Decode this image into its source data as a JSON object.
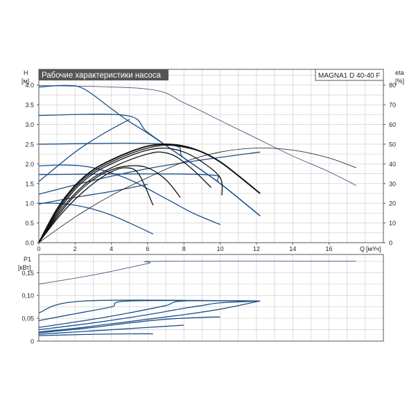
{
  "chart_data": [
    {
      "type": "line",
      "title": "Рабочие характеристики насоса",
      "model": "MAGNA1 D 40-40 F",
      "ylabel": "H",
      "yunit": "[м]",
      "y2label": "eta",
      "y2unit": "[%]",
      "xlabel": "Q",
      "xunit": "[м³/ч]",
      "xlim": [
        0,
        19
      ],
      "ylim": [
        0,
        4.4
      ],
      "y2lim": [
        0,
        88
      ],
      "xticks": [
        "0",
        "2",
        "4",
        "6",
        "8",
        "10",
        "12",
        "14",
        "16"
      ],
      "yticks": [
        "0.0",
        "0.5",
        "1.0",
        "1.5",
        "2.0",
        "2.5",
        "3.0",
        "3.5",
        "4.0"
      ],
      "y2ticks": [
        "0",
        "10",
        "20",
        "30",
        "40",
        "50",
        "60",
        "70",
        "80"
      ],
      "grid": true,
      "colors": {
        "curve": "#1b4f8a",
        "thin": "#3d5a80",
        "eta": "#111111"
      },
      "head_curves": [
        {
          "points": [
            [
              0,
              3.95
            ],
            [
              1.5,
              3.99
            ],
            [
              2.5,
              3.9
            ],
            [
              4,
              3.4
            ],
            [
              5,
              3.07
            ],
            [
              6,
              2.78
            ],
            [
              8,
              2.15
            ],
            [
              10,
              1.5
            ],
            [
              12.2,
              0.68
            ]
          ]
        },
        {
          "points": [
            [
              0,
              3.23
            ],
            [
              4.8,
              3.23
            ],
            [
              6,
              2.8
            ],
            [
              8,
              2.15
            ],
            [
              10,
              1.5
            ],
            [
              12.2,
              0.68
            ]
          ]
        },
        {
          "points": [
            [
              0,
              2.5
            ],
            [
              7,
              2.5
            ],
            [
              8,
              2.15
            ],
            [
              10,
              1.5
            ],
            [
              12.2,
              0.68
            ]
          ]
        },
        {
          "points": [
            [
              0,
              1.73
            ],
            [
              9,
              1.73
            ],
            [
              10,
              1.5
            ],
            [
              12.2,
              0.68
            ]
          ]
        },
        {
          "points": [
            [
              0,
              1.55
            ],
            [
              2,
              2.3
            ],
            [
              3.5,
              2.75
            ],
            [
              5,
              3.13
            ]
          ]
        },
        {
          "points": [
            [
              0,
              1.95
            ],
            [
              1.5,
              1.97
            ],
            [
              3,
              1.9
            ],
            [
              5,
              1.6
            ],
            [
              7,
              1.12
            ],
            [
              8.5,
              0.75
            ],
            [
              10,
              0.46
            ]
          ]
        },
        {
          "points": [
            [
              0,
              1.0
            ],
            [
              1,
              1.0
            ],
            [
              2,
              0.95
            ],
            [
              3,
              0.85
            ],
            [
              4,
              0.7
            ],
            [
              5,
              0.5
            ],
            [
              6.3,
              0.22
            ]
          ]
        },
        {
          "points": [
            [
              0,
              1.23
            ],
            [
              3,
              1.58
            ],
            [
              6,
              1.88
            ],
            [
              9,
              2.1
            ],
            [
              12.2,
              2.3
            ]
          ]
        },
        {
          "points": [
            [
              0,
              0.98
            ],
            [
              2,
              1.15
            ],
            [
              4,
              1.3
            ],
            [
              6,
              1.48
            ]
          ]
        }
      ],
      "max_curve": {
        "points": [
          [
            0,
            3.99
          ],
          [
            6,
            3.9
          ],
          [
            8,
            3.55
          ],
          [
            10,
            3.1
          ],
          [
            12,
            2.65
          ],
          [
            14,
            2.2
          ],
          [
            16,
            1.8
          ],
          [
            17.5,
            1.45
          ]
        ]
      },
      "eta_curves": [
        {
          "points": [
            [
              0,
              0
            ],
            [
              1,
              17
            ],
            [
              2,
              29
            ],
            [
              3,
              37
            ],
            [
              4,
              42
            ],
            [
              5,
              46
            ],
            [
              6,
              49
            ],
            [
              7,
              50
            ],
            [
              8,
              49
            ],
            [
              9,
              46
            ],
            [
              10,
              41
            ],
            [
              11,
              34
            ],
            [
              12.2,
              25
            ]
          ]
        },
        {
          "points": [
            [
              0,
              0
            ],
            [
              1,
              16
            ],
            [
              2,
              28
            ],
            [
              3,
              36
            ],
            [
              4,
              41
            ],
            [
              5,
              45
            ],
            [
              6,
              48
            ],
            [
              7,
              49.5
            ],
            [
              8,
              48.5
            ],
            [
              9,
              46
            ],
            [
              10,
              41
            ]
          ]
        },
        {
          "points": [
            [
              0,
              0
            ],
            [
              1,
              15
            ],
            [
              2,
              27
            ],
            [
              3,
              35
            ],
            [
              4,
              40
            ],
            [
              5,
              44
            ],
            [
              6,
              47
            ],
            [
              7,
              48
            ],
            [
              8,
              46
            ],
            [
              9,
              41
            ],
            [
              10,
              33
            ],
            [
              10.1,
              24
            ]
          ]
        },
        {
          "points": [
            [
              0,
              0
            ],
            [
              1,
              14
            ],
            [
              2,
              25
            ],
            [
              3,
              33
            ],
            [
              4,
              38
            ],
            [
              5,
              42
            ],
            [
              6,
              45
            ],
            [
              6.7,
              46
            ],
            [
              7.5,
              44
            ],
            [
              8.5,
              37
            ],
            [
              9.5,
              28
            ]
          ]
        },
        {
          "points": [
            [
              0,
              0
            ],
            [
              1,
              13
            ],
            [
              2,
              24
            ],
            [
              3,
              32
            ],
            [
              4,
              37
            ],
            [
              5,
              39
            ],
            [
              6,
              38
            ],
            [
              7,
              32
            ],
            [
              7.8,
              23
            ]
          ]
        },
        {
          "points": [
            [
              0,
              0
            ],
            [
              1,
              12
            ],
            [
              2,
              22
            ],
            [
              3,
              30
            ],
            [
              4,
              36
            ],
            [
              4.8,
              38
            ],
            [
              5.5,
              35
            ],
            [
              6.3,
              19
            ]
          ]
        },
        {
          "points": [
            [
              0,
              0
            ],
            [
              2,
              13
            ],
            [
              4,
              24
            ],
            [
              6,
              33
            ],
            [
              8,
              41
            ],
            [
              10,
              46
            ],
            [
              12,
              48
            ],
            [
              14,
              47
            ],
            [
              16,
              43
            ],
            [
              17.5,
              38
            ]
          ]
        }
      ]
    },
    {
      "type": "line",
      "ylabel": "P1",
      "yunit": "[кВт]",
      "xlim": [
        0,
        19
      ],
      "ylim": [
        0,
        0.19
      ],
      "yticks": [
        "0",
        "0,05",
        "0,10",
        "0,15"
      ],
      "grid": true,
      "power_curves": [
        {
          "points": [
            [
              0,
              0.125
            ],
            [
              3,
              0.145
            ],
            [
              6,
              0.17
            ],
            [
              6.7,
              0.175
            ],
            [
              17.5,
              0.175
            ]
          ]
        },
        {
          "points": [
            [
              0,
              0.062
            ],
            [
              2.5,
              0.088
            ],
            [
              12.2,
              0.088
            ]
          ]
        },
        {
          "points": [
            [
              0,
              0.045
            ],
            [
              2,
              0.06
            ],
            [
              4,
              0.075
            ],
            [
              5,
              0.088
            ],
            [
              12.2,
              0.088
            ]
          ]
        },
        {
          "points": [
            [
              0,
              0.03
            ],
            [
              3,
              0.048
            ],
            [
              5,
              0.062
            ],
            [
              7,
              0.078
            ],
            [
              8,
              0.088
            ],
            [
              12.2,
              0.088
            ]
          ]
        },
        {
          "points": [
            [
              0,
              0.025
            ],
            [
              3,
              0.04
            ],
            [
              6,
              0.058
            ],
            [
              8,
              0.072
            ],
            [
              9,
              0.078
            ],
            [
              10,
              0.084
            ],
            [
              12.2,
              0.088
            ]
          ]
        },
        {
          "points": [
            [
              0,
              0.02
            ],
            [
              2,
              0.028
            ],
            [
              4,
              0.038
            ],
            [
              6,
              0.048
            ],
            [
              8,
              0.058
            ],
            [
              10,
              0.07
            ],
            [
              12.2,
              0.088
            ]
          ]
        },
        {
          "points": [
            [
              0,
              0.018
            ],
            [
              3,
              0.03
            ],
            [
              5,
              0.04
            ],
            [
              7,
              0.048
            ],
            [
              9,
              0.052
            ],
            [
              10,
              0.053
            ]
          ]
        },
        {
          "points": [
            [
              0,
              0.012
            ],
            [
              3,
              0.015
            ],
            [
              5,
              0.016
            ],
            [
              6.3,
              0.016
            ]
          ]
        },
        {
          "points": [
            [
              0,
              0.015
            ],
            [
              2,
              0.02
            ],
            [
              4,
              0.025
            ],
            [
              6,
              0.03
            ],
            [
              8,
              0.035
            ]
          ]
        }
      ]
    }
  ]
}
